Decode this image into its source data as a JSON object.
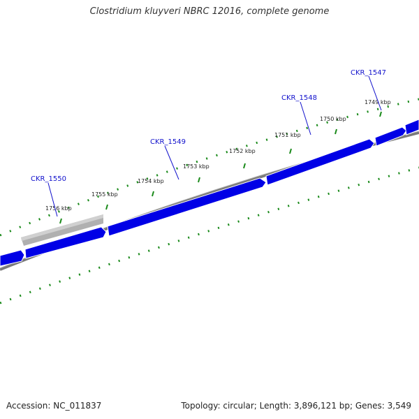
{
  "title": "Clostridium kluyveri NBRC 12016, complete genome",
  "accession_label": "Accession: NC_011837",
  "summary_label": "Topology: circular; Length: 3,896,121 bp; Genes: 3,549",
  "colors": {
    "gene_fill": "#0000e6",
    "highlight_gene_fill": "#b8b8b8",
    "backbone": "#808080",
    "ticks": "#1a8a1a",
    "gene_label": "#1010cc"
  },
  "tick_labels": [
    "1756 kbp",
    "1755 kbp",
    "1754 kbp",
    "1753 kbp",
    "1752 kbp",
    "1751 kbp",
    "1750 kbp",
    "1749 kbp"
  ],
  "gene_labels": [
    "CKR_1550",
    "CKR_1549",
    "CKR_1548",
    "CKR_1547"
  ]
}
